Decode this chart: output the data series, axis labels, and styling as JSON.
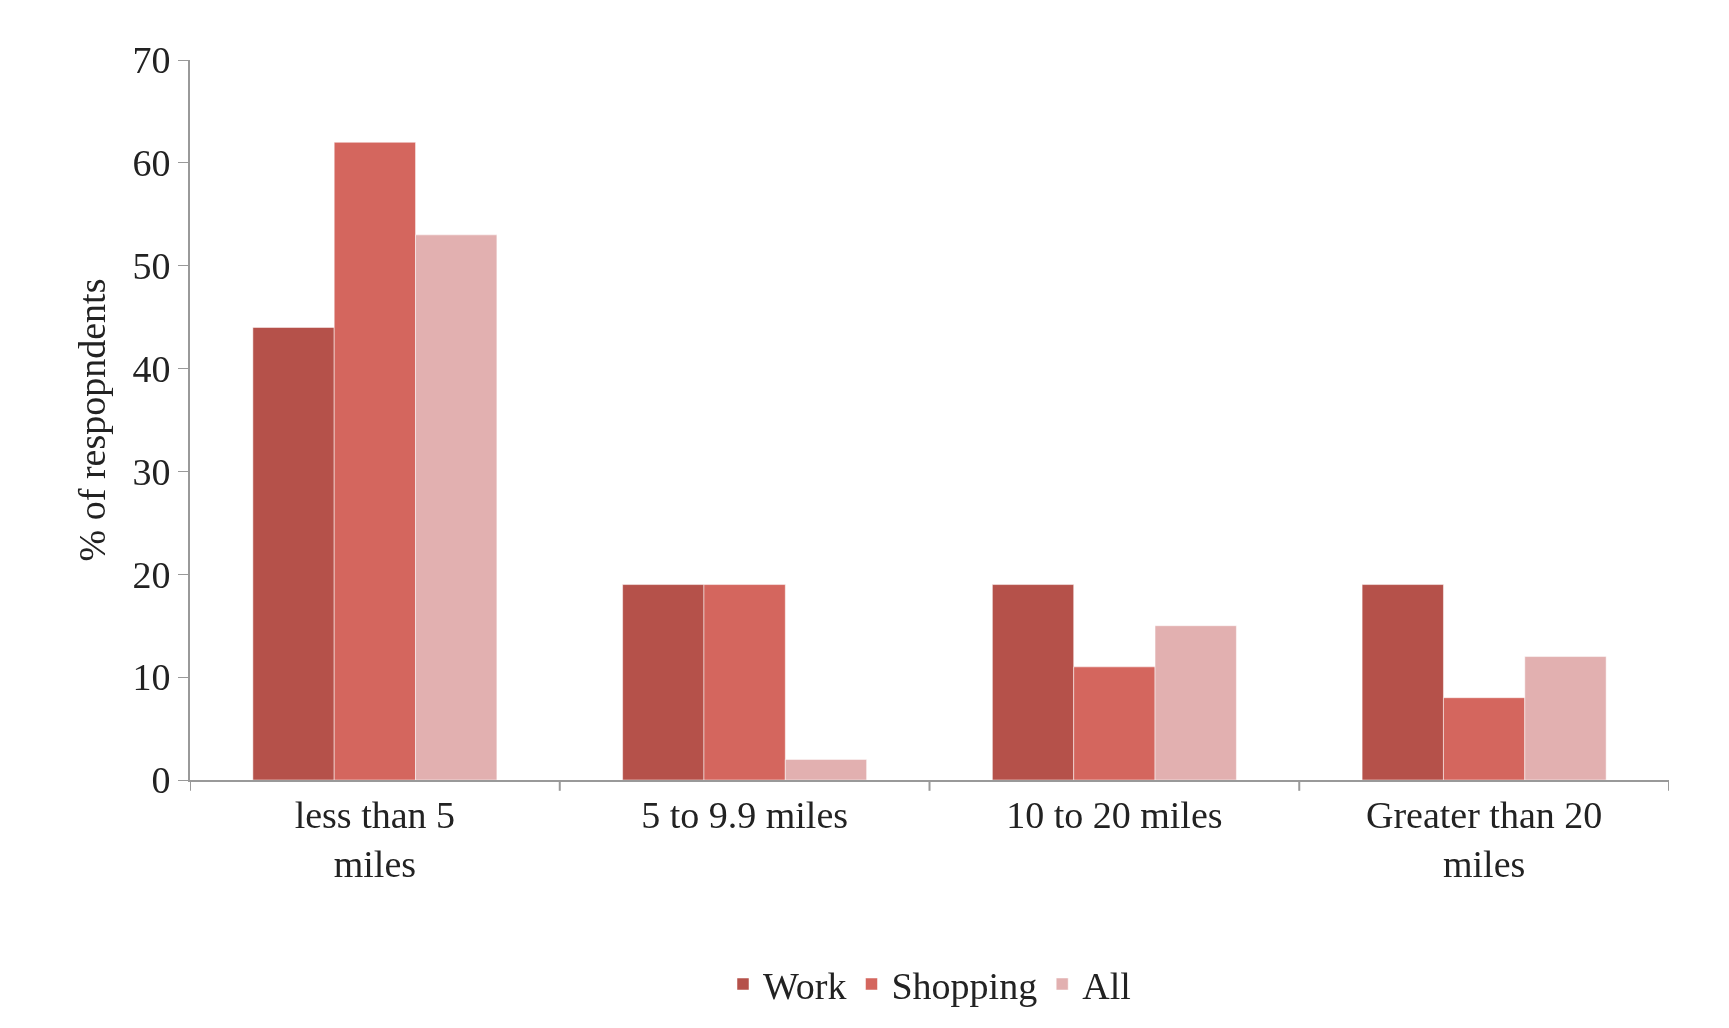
{
  "chart_data": {
    "type": "bar",
    "ylabel": "% of respopndents",
    "categories": [
      "less than 5 miles",
      "5 to 9.9 miles",
      "10 to 20 miles",
      "Greater than 20 miles"
    ],
    "series": [
      {
        "name": "Work",
        "color": "#b5514a",
        "values": [
          44,
          19,
          19,
          19
        ]
      },
      {
        "name": "Shopping",
        "color": "#d4665e",
        "values": [
          62,
          19,
          11,
          8
        ]
      },
      {
        "name": "All",
        "color": "#e2b0b0",
        "values": [
          53,
          2,
          15,
          12
        ]
      }
    ],
    "ylim": [
      0,
      70
    ],
    "yticks": [
      0,
      10,
      20,
      30,
      40,
      50,
      60,
      70
    ],
    "legend": "bottom"
  }
}
